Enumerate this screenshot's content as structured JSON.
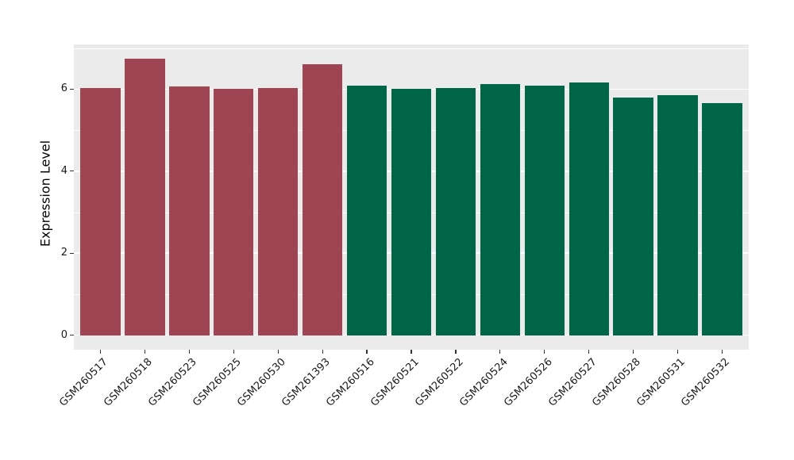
{
  "figure": {
    "background": "#ffffff",
    "panel_background": "#ebebeb",
    "gridline_color": "#ffffff",
    "tick_color": "#333333",
    "axis_text_color": "#1a1a1a"
  },
  "chart_data": {
    "type": "bar",
    "title": "",
    "xlabel": "",
    "ylabel": "Expression Level",
    "ylim": [
      0,
      7.09
    ],
    "yticks": [
      0,
      2,
      4,
      6
    ],
    "yticks_minor": [
      1,
      3,
      5,
      7
    ],
    "grid": true,
    "legend_position": "none",
    "group_colors": {
      "group1": "#9e4452",
      "group2": "#006647"
    },
    "categories": [
      "GSM260517",
      "GSM260518",
      "GSM260523",
      "GSM260525",
      "GSM260530",
      "GSM261393",
      "GSM260516",
      "GSM260521",
      "GSM260522",
      "GSM260524",
      "GSM260526",
      "GSM260527",
      "GSM260528",
      "GSM260531",
      "GSM260532"
    ],
    "bars": [
      {
        "label": "GSM260517",
        "value": 6.02,
        "group": "group1",
        "color": "#9e4452"
      },
      {
        "label": "GSM260518",
        "value": 6.75,
        "group": "group1",
        "color": "#9e4452"
      },
      {
        "label": "GSM260523",
        "value": 6.07,
        "group": "group1",
        "color": "#9e4452"
      },
      {
        "label": "GSM260525",
        "value": 6.01,
        "group": "group1",
        "color": "#9e4452"
      },
      {
        "label": "GSM260530",
        "value": 6.03,
        "group": "group1",
        "color": "#9e4452"
      },
      {
        "label": "GSM261393",
        "value": 6.61,
        "group": "group1",
        "color": "#9e4452"
      },
      {
        "label": "GSM260516",
        "value": 6.08,
        "group": "group2",
        "color": "#006647"
      },
      {
        "label": "GSM260521",
        "value": 6.01,
        "group": "group2",
        "color": "#006647"
      },
      {
        "label": "GSM260522",
        "value": 6.02,
        "group": "group2",
        "color": "#006647"
      },
      {
        "label": "GSM260524",
        "value": 6.12,
        "group": "group2",
        "color": "#006647"
      },
      {
        "label": "GSM260526",
        "value": 6.08,
        "group": "group2",
        "color": "#006647"
      },
      {
        "label": "GSM260527",
        "value": 6.17,
        "group": "group2",
        "color": "#006647"
      },
      {
        "label": "GSM260528",
        "value": 5.79,
        "group": "group2",
        "color": "#006647"
      },
      {
        "label": "GSM260531",
        "value": 5.85,
        "group": "group2",
        "color": "#006647"
      },
      {
        "label": "GSM260532",
        "value": 5.65,
        "group": "group2",
        "color": "#006647"
      }
    ]
  }
}
